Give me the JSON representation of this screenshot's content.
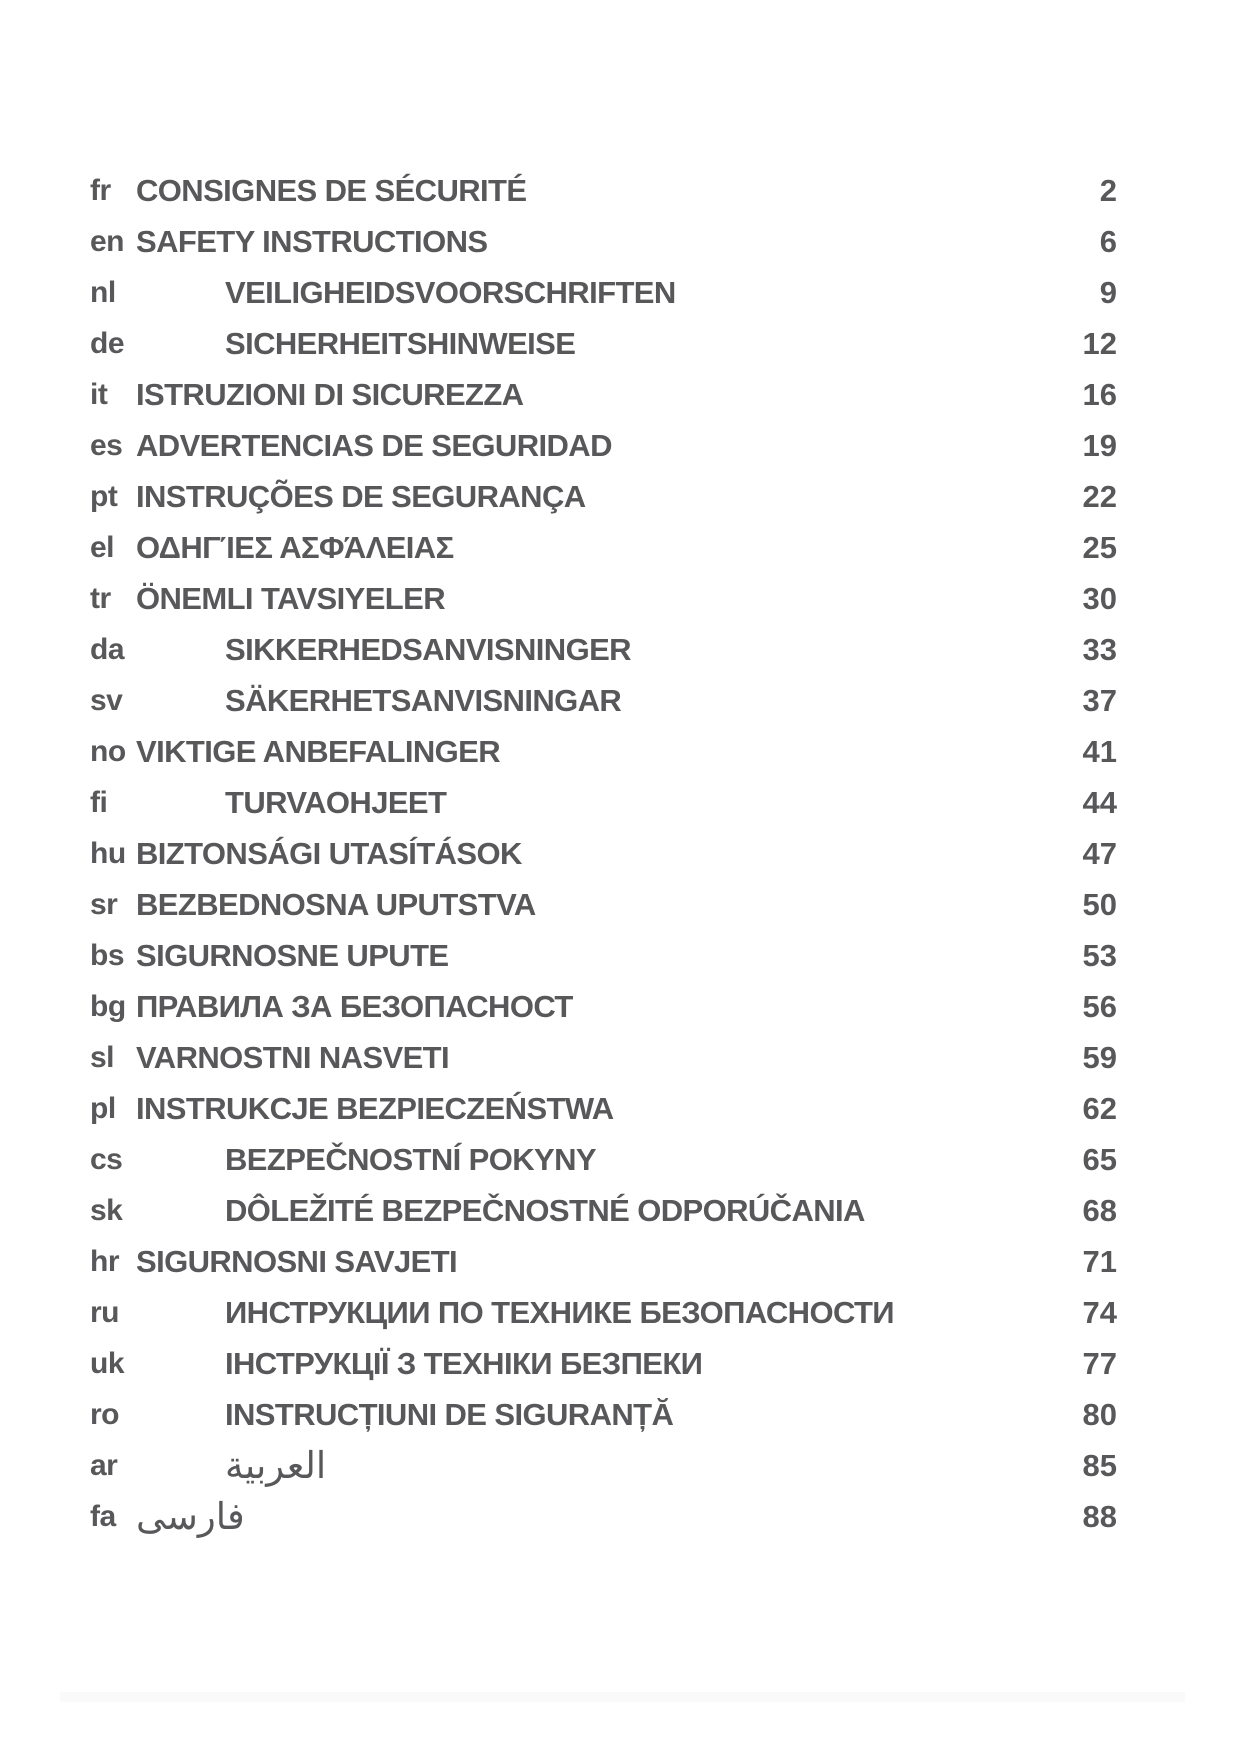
{
  "document": {
    "type": "table-of-contents",
    "text_color": "#58585b",
    "rows": [
      {
        "code": "fr",
        "title": "CONSIGNES DE SÉCURITÉ",
        "page": "2",
        "indent": false,
        "rtl": false
      },
      {
        "code": "en",
        "title": "SAFETY INSTRUCTIONS",
        "page": "6",
        "indent": false,
        "rtl": false
      },
      {
        "code": "nl",
        "title": "VEILIGHEIDSVOORSCHRIFTEN",
        "page": "9",
        "indent": true,
        "rtl": false
      },
      {
        "code": "de",
        "title": "SICHERHEITSHINWEISE",
        "page": "12",
        "indent": true,
        "rtl": false
      },
      {
        "code": "it",
        "title": "ISTRUZIONI DI SICUREZZA",
        "page": "16",
        "indent": false,
        "rtl": false
      },
      {
        "code": "es",
        "title": "ADVERTENCIAS DE SEGURIDAD",
        "page": "19",
        "indent": false,
        "rtl": false
      },
      {
        "code": "pt",
        "title": "INSTRUÇÕES DE SEGURANÇA",
        "page": "22",
        "indent": false,
        "rtl": false
      },
      {
        "code": "el",
        "title": "ΟΔΗΓΊΕΣ ΑΣΦΆΛΕΙΑΣ",
        "page": "25",
        "indent": false,
        "rtl": false
      },
      {
        "code": "tr",
        "title": "ÖNEMLI TAVSIYELER",
        "page": "30",
        "indent": false,
        "rtl": false
      },
      {
        "code": "da",
        "title": "SIKKERHEDSANVISNINGER",
        "page": "33",
        "indent": true,
        "rtl": false
      },
      {
        "code": "sv",
        "title": "SÄKERHETSANVISNINGAR",
        "page": "37",
        "indent": true,
        "rtl": false
      },
      {
        "code": "no",
        "title": "VIKTIGE ANBEFALINGER",
        "page": "41",
        "indent": false,
        "rtl": false
      },
      {
        "code": "fi",
        "title": "TURVAOHJEET",
        "page": "44",
        "indent": true,
        "rtl": false
      },
      {
        "code": "hu",
        "title": "BIZTONSÁGI UTASÍTÁSOK",
        "page": "47",
        "indent": false,
        "rtl": false
      },
      {
        "code": "sr",
        "title": "BEZBEDNOSNA UPUTSTVA",
        "page": "50",
        "indent": false,
        "rtl": false
      },
      {
        "code": "bs",
        "title": "SIGURNOSNE UPUTE",
        "page": "53",
        "indent": false,
        "rtl": false
      },
      {
        "code": "bg",
        "title": "ПРАВИЛА ЗА БЕЗОПАСНОСТ",
        "page": "56",
        "indent": false,
        "rtl": false
      },
      {
        "code": "sl",
        "title": "VARNOSTNI NASVETI",
        "page": "59",
        "indent": false,
        "rtl": false
      },
      {
        "code": "pl",
        "title": "INSTRUKCJE BEZPIECZEŃSTWA",
        "page": "62",
        "indent": false,
        "rtl": false
      },
      {
        "code": "cs",
        "title": "BEZPEČNOSTNÍ POKYNY",
        "page": "65",
        "indent": true,
        "rtl": false
      },
      {
        "code": "sk",
        "title": "DÔLEŽITÉ BEZPEČNOSTNÉ ODPORÚČANIA",
        "page": "68",
        "indent": true,
        "rtl": false
      },
      {
        "code": "hr",
        "title": "SIGURNOSNI SAVJETI",
        "page": "71",
        "indent": false,
        "rtl": false
      },
      {
        "code": "ru",
        "title": "ИНСТРУКЦИИ ПО ТЕХНИКЕ БЕЗОПАСНОСТИ",
        "page": "74",
        "indent": true,
        "rtl": false
      },
      {
        "code": "uk",
        "title": "ІНСТРУКЦІЇ З ТЕХНІКИ БЕЗПЕКИ",
        "page": "77",
        "indent": true,
        "rtl": false
      },
      {
        "code": "ro",
        "title": "INSTRUCȚIUNI DE SIGURANȚĂ",
        "page": "80",
        "indent": true,
        "rtl": false
      },
      {
        "code": "ar",
        "title": "العربية",
        "page": "85",
        "indent": true,
        "rtl": true
      },
      {
        "code": "fa",
        "title": "فارسی",
        "page": "88",
        "indent": false,
        "rtl": true
      }
    ]
  }
}
